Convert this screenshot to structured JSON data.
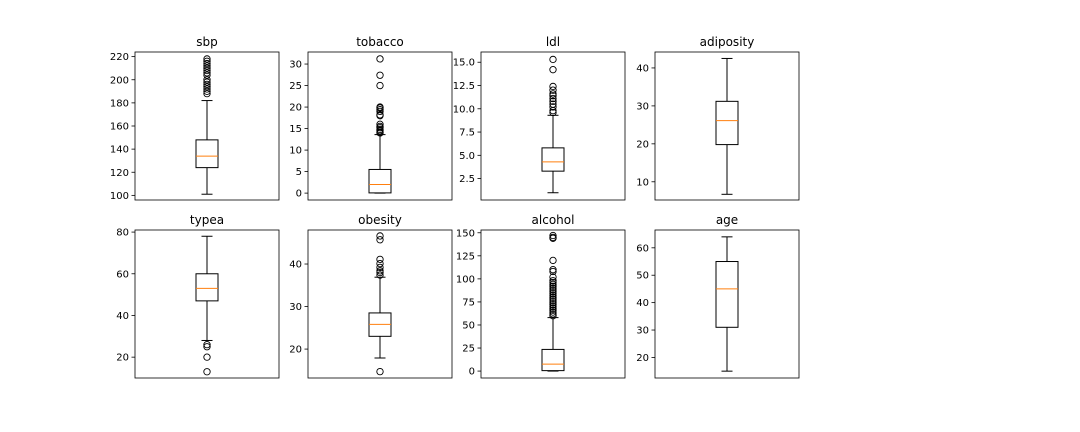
{
  "figure": {
    "background": "#ffffff",
    "box_color": "#000000",
    "median_color": "#ff7f0e",
    "flier_color": "#000000"
  },
  "chart_data": [
    {
      "type": "box",
      "title": "sbp",
      "ylim": [
        96,
        224
      ],
      "yticks": [
        100,
        120,
        140,
        160,
        180,
        200,
        220
      ],
      "whisker_low": 101,
      "q1": 124,
      "median": 134,
      "q3": 148,
      "whisker_high": 182,
      "outliers": [
        188,
        190,
        192,
        194,
        196,
        198,
        200,
        204,
        206,
        208,
        210,
        212,
        214,
        216,
        218
      ]
    },
    {
      "type": "box",
      "title": "tobacco",
      "ylim": [
        -1.6,
        32.8
      ],
      "yticks": [
        0,
        5,
        10,
        15,
        20,
        25,
        30
      ],
      "whisker_low": 0.0,
      "q1": 0.05,
      "median": 2.0,
      "q3": 5.5,
      "whisker_high": 13.6,
      "outliers": [
        14.0,
        14.2,
        14.5,
        14.8,
        15.2,
        15.5,
        16.0,
        18.0,
        18.2,
        19.0,
        19.4,
        19.8,
        20.0,
        25.0,
        27.4,
        31.2
      ]
    },
    {
      "type": "box",
      "title": "ldl",
      "ylim": [
        0.2,
        16.1
      ],
      "yticks": [
        2.5,
        5.0,
        7.5,
        10.0,
        12.5,
        15.0
      ],
      "whisker_low": 0.98,
      "q1": 3.3,
      "median": 4.3,
      "q3": 5.8,
      "whisker_high": 9.3,
      "outliers": [
        9.6,
        9.8,
        10.2,
        10.5,
        10.8,
        11.1,
        11.4,
        11.6,
        12.0,
        12.4,
        14.2,
        15.3
      ]
    },
    {
      "type": "box",
      "title": "adiposity",
      "ylim": [
        5.2,
        44.2
      ],
      "yticks": [
        10,
        20,
        30,
        40
      ],
      "whisker_low": 6.7,
      "q1": 19.8,
      "median": 26.1,
      "q3": 31.2,
      "whisker_high": 42.5,
      "outliers": []
    },
    {
      "type": "box",
      "title": "typea",
      "ylim": [
        10,
        81
      ],
      "yticks": [
        20,
        40,
        60,
        80
      ],
      "whisker_low": 28,
      "q1": 47,
      "median": 53,
      "q3": 60,
      "whisker_high": 78,
      "outliers": [
        13,
        20,
        25,
        26
      ]
    },
    {
      "type": "box",
      "title": "obesity",
      "ylim": [
        13.2,
        48.0
      ],
      "yticks": [
        20,
        30,
        40
      ],
      "whisker_low": 17.9,
      "q1": 23.0,
      "median": 25.8,
      "q3": 28.5,
      "whisker_high": 36.9,
      "outliers": [
        14.7,
        37.4,
        38.0,
        38.4,
        39.2,
        40.1,
        41.1,
        45.7,
        46.6
      ]
    },
    {
      "type": "box",
      "title": "alcohol",
      "ylim": [
        -7.5,
        153
      ],
      "yticks": [
        0,
        25,
        50,
        75,
        100,
        125,
        150
      ],
      "whisker_low": 0,
      "q1": 0.5,
      "median": 7.5,
      "q3": 23.5,
      "whisker_high": 58,
      "outliers": [
        60,
        62,
        64,
        66,
        68,
        70,
        72,
        74,
        76,
        78,
        80,
        82,
        84,
        86,
        88,
        90,
        92,
        94,
        96,
        98,
        102,
        108,
        110,
        120,
        144,
        145,
        147
      ]
    },
    {
      "type": "box",
      "title": "age",
      "ylim": [
        12.5,
        66.5
      ],
      "yticks": [
        20,
        30,
        40,
        50,
        60
      ],
      "whisker_low": 15,
      "q1": 31,
      "median": 45,
      "q3": 55,
      "whisker_high": 64,
      "outliers": []
    }
  ]
}
